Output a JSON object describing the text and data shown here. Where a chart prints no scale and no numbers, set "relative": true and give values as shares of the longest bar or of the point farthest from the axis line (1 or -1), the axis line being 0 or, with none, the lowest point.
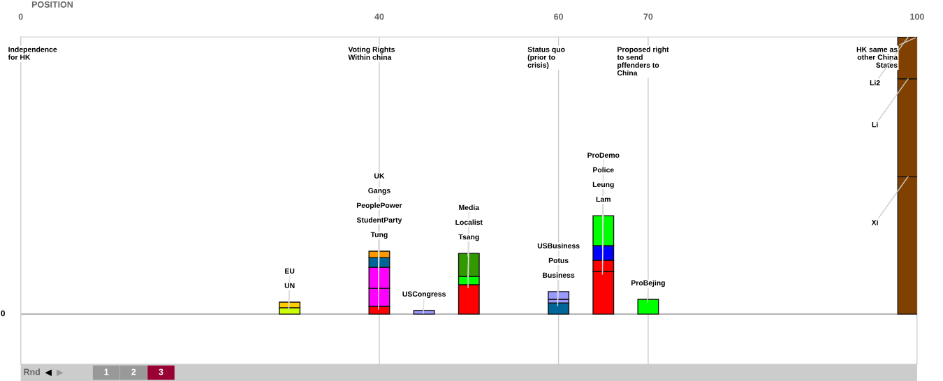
{
  "chart_data": {
    "type": "bar",
    "stacked": true,
    "relative": true,
    "xlabel": "POSITION",
    "x": [
      30,
      40,
      45,
      50,
      60,
      65,
      70,
      99
    ],
    "xlim": [
      0,
      100
    ],
    "xticks": [
      0,
      40,
      60,
      70,
      100
    ],
    "series": [
      {
        "colors": [
          "#ccff00",
          "#ff0000",
          "#9999ff",
          "#ff0000",
          "#006699",
          "#ff0000",
          "#00ff00",
          "#804000"
        ],
        "values": [
          0.023,
          0.028,
          0.013,
          0.106,
          0.04,
          0.154,
          0.053,
          0.496
        ]
      },
      {
        "colors": [
          "#ffcc00",
          "#ff00ff",
          null,
          "#00ff00",
          "#9999ff",
          "#ff0000",
          null,
          "#804000"
        ],
        "values": [
          0.02,
          0.065,
          null,
          0.03,
          0.013,
          0.04,
          null,
          0.353
        ]
      },
      {
        "colors": [
          null,
          "#ff00ff",
          null,
          "#339900",
          "#9999ff",
          "#0000ff",
          null,
          "#804000"
        ],
        "values": [
          null,
          0.076,
          null,
          0.083,
          0.028,
          0.053,
          null,
          0.151
        ]
      },
      {
        "colors": [
          null,
          "#006699",
          null,
          null,
          null,
          "#00ff00",
          null,
          null
        ],
        "values": [
          null,
          0.035,
          null,
          null,
          null,
          0.108,
          null,
          null
        ]
      },
      {
        "colors": [
          null,
          "#ff9900",
          null,
          null,
          null,
          null,
          null,
          null
        ],
        "values": [
          null,
          0.023,
          null,
          null,
          null,
          null,
          null,
          null
        ]
      }
    ],
    "ref_lines": [
      {
        "axis": "x",
        "value": 0,
        "label": "Independence\nfor HK",
        "color": "#cccccc"
      },
      {
        "axis": "x",
        "value": 40,
        "label": "Voting Rights\nWithin china",
        "color": "#cccccc"
      },
      {
        "axis": "x",
        "value": 60,
        "label": "Status quo\n(prior to\ncrisis)",
        "color": "#cccccc"
      },
      {
        "axis": "x",
        "value": 70,
        "label": "Proposed right\nto send\npffenders to\nChina",
        "color": "#cccccc"
      },
      {
        "axis": "x",
        "value": 100,
        "label": "HK same as\nother China\nStates",
        "color": "#cccccc"
      }
    ],
    "annotations": [
      {
        "text": "UN",
        "x": 30,
        "y": 0.023
      },
      {
        "text": "EU",
        "x": 30,
        "y": 0.043
      },
      {
        "text": "Tung",
        "x": 40,
        "y": 0.028
      },
      {
        "text": "StudentParty",
        "x": 40,
        "y": 0.093
      },
      {
        "text": "PeoplePower",
        "x": 40,
        "y": 0.169
      },
      {
        "text": "Gangs",
        "x": 40,
        "y": 0.204
      },
      {
        "text": "UK",
        "x": 40,
        "y": 0.227
      },
      {
        "text": "USCongress",
        "x": 45,
        "y": 0.013
      },
      {
        "text": "Tsang",
        "x": 50,
        "y": 0.106
      },
      {
        "text": "Localist",
        "x": 50,
        "y": 0.136
      },
      {
        "text": "Media",
        "x": 50,
        "y": 0.219
      },
      {
        "text": "Business",
        "x": 60,
        "y": 0.04
      },
      {
        "text": "Potus",
        "x": 60,
        "y": 0.053
      },
      {
        "text": "USBusiness",
        "x": 60,
        "y": 0.081
      },
      {
        "text": "Lam",
        "x": 65,
        "y": 0.154
      },
      {
        "text": "Leung",
        "x": 65,
        "y": 0.194
      },
      {
        "text": "Police",
        "x": 65,
        "y": 0.247
      },
      {
        "text": "ProDemo",
        "x": 65,
        "y": 0.355
      },
      {
        "text": "ProBejing",
        "x": 70,
        "y": 0.053
      },
      {
        "text": "Xi",
        "x": 99,
        "y": 0.496
      },
      {
        "text": "Li",
        "x": 99,
        "y": 0.849
      },
      {
        "text": "Li2",
        "x": 99,
        "y": 1.0
      },
      "0",
      "Rnd",
      "◀",
      "▶",
      "1",
      "2",
      "3"
    ]
  }
}
